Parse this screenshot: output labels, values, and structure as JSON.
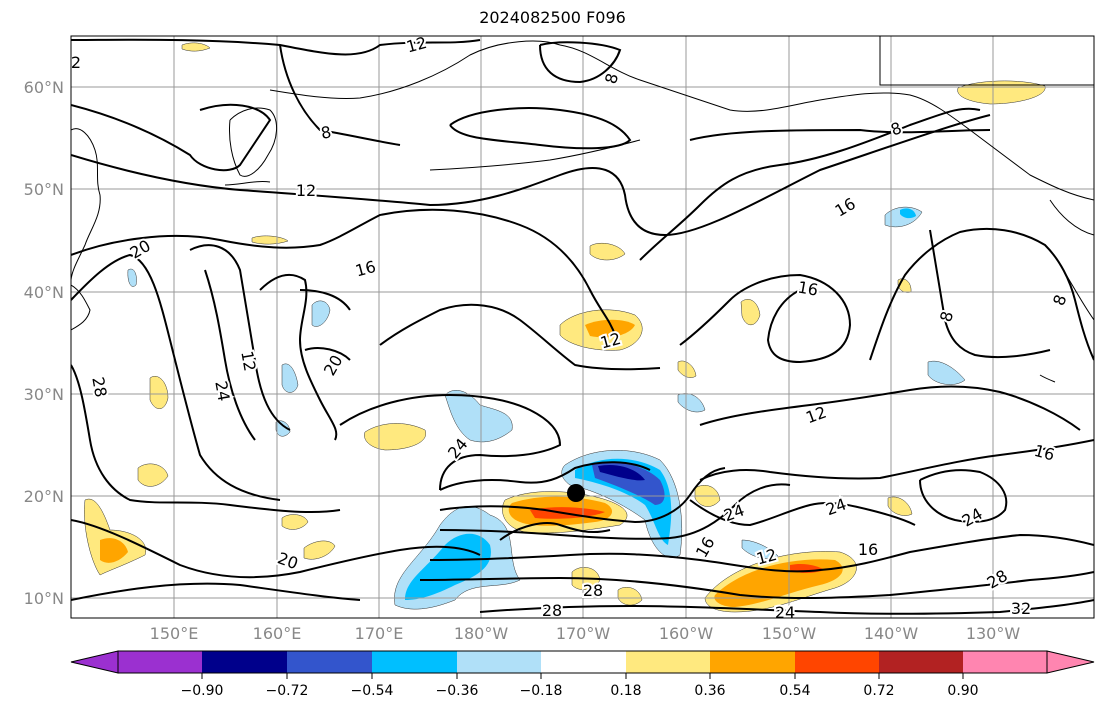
{
  "title": "2024082500 F096",
  "lat_labels": [
    "60°N",
    "50°N",
    "40°N",
    "30°N",
    "20°N",
    "10°N"
  ],
  "lon_labels": [
    "150°E",
    "160°E",
    "170°E",
    "180°W",
    "170°W",
    "160°W",
    "150°W",
    "140°W",
    "130°W"
  ],
  "colorbar": {
    "ticks": [
      "−0.90",
      "−0.72",
      "−0.54",
      "−0.36",
      "−0.18",
      "0.18",
      "0.36",
      "0.54",
      "0.72",
      "0.90"
    ],
    "colors": [
      "#9b30d0",
      "#00008b",
      "#3355cc",
      "#00bfff",
      "#b0e0f8",
      "#ffffff",
      "#ffe97f",
      "#ffa500",
      "#ff4500",
      "#b22222",
      "#ff85b0"
    ]
  },
  "contour_labels": [
    "12",
    "8",
    "8",
    "12",
    "20",
    "16",
    "12",
    "20",
    "24",
    "28",
    "16",
    "12",
    "8",
    "16",
    "8",
    "8",
    "12",
    "24",
    "16",
    "24",
    "24",
    "16",
    "12",
    "16",
    "24",
    "28",
    "32",
    "28",
    "24",
    "20",
    "28",
    "2"
  ],
  "colors": {
    "contour": "#000000",
    "grid": "#999999",
    "tick_text": "#888888",
    "storm_marker": "#000000"
  }
}
